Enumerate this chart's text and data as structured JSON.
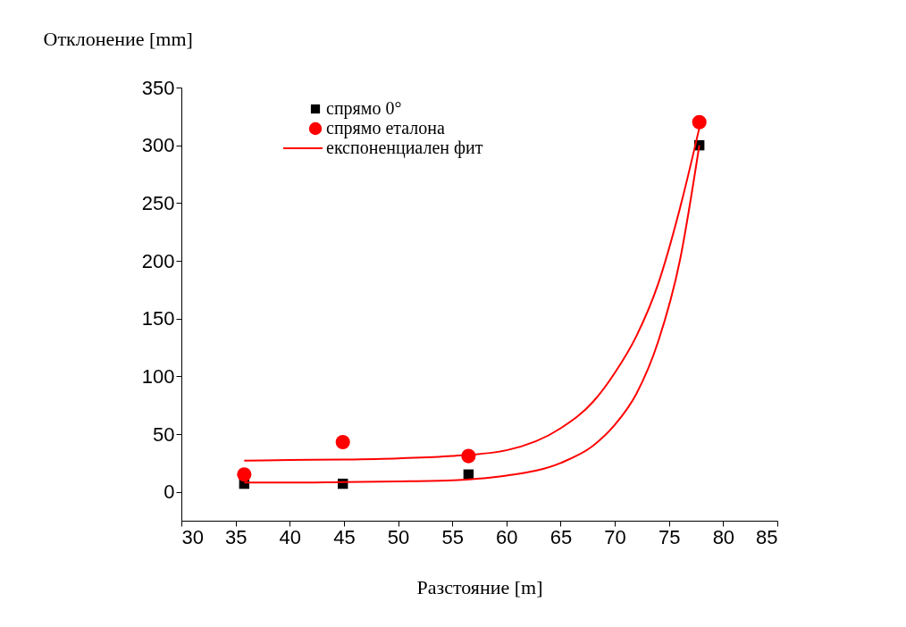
{
  "chart_data": {
    "type": "scatter",
    "xlabel": "Разстояние [m]",
    "ylabel": "Отклонение [mm]",
    "xlim": [
      30,
      85
    ],
    "xticks": [
      30,
      35,
      40,
      45,
      50,
      55,
      60,
      65,
      70,
      75,
      80,
      85
    ],
    "ylim": [
      -25,
      350
    ],
    "yticks": [
      0,
      50,
      100,
      150,
      200,
      250,
      300,
      350
    ],
    "grid": false,
    "legend": "top left",
    "series": [
      {
        "name": "спрямо 0°",
        "marker": "square",
        "color": "#000000",
        "x": [
          35.8,
          44.9,
          56.5,
          77.8
        ],
        "values": [
          7,
          7,
          15,
          300
        ]
      },
      {
        "name": "спрямо еталона",
        "marker": "circle",
        "color": "#ff0000",
        "x": [
          35.8,
          44.9,
          56.5,
          77.8
        ],
        "values": [
          15,
          43,
          31,
          320
        ]
      },
      {
        "name": "експоненциален фит",
        "type": "line",
        "marker": "none",
        "color": "#ff0000",
        "x": [
          35.8,
          40,
          45,
          50,
          55,
          60,
          65,
          68,
          70,
          72,
          74,
          76,
          77.8
        ],
        "values": [
          8,
          8,
          8.5,
          9,
          10,
          14,
          25,
          40,
          58,
          85,
          130,
          200,
          300
        ]
      },
      {
        "type": "line",
        "marker": "none",
        "color": "#ff0000",
        "x": [
          35.8,
          40,
          45,
          50,
          55,
          60,
          65,
          68,
          70,
          72,
          74,
          76,
          77.8
        ],
        "values": [
          27,
          27.5,
          28,
          29,
          31,
          36,
          55,
          78,
          103,
          135,
          180,
          245,
          315
        ]
      }
    ]
  }
}
